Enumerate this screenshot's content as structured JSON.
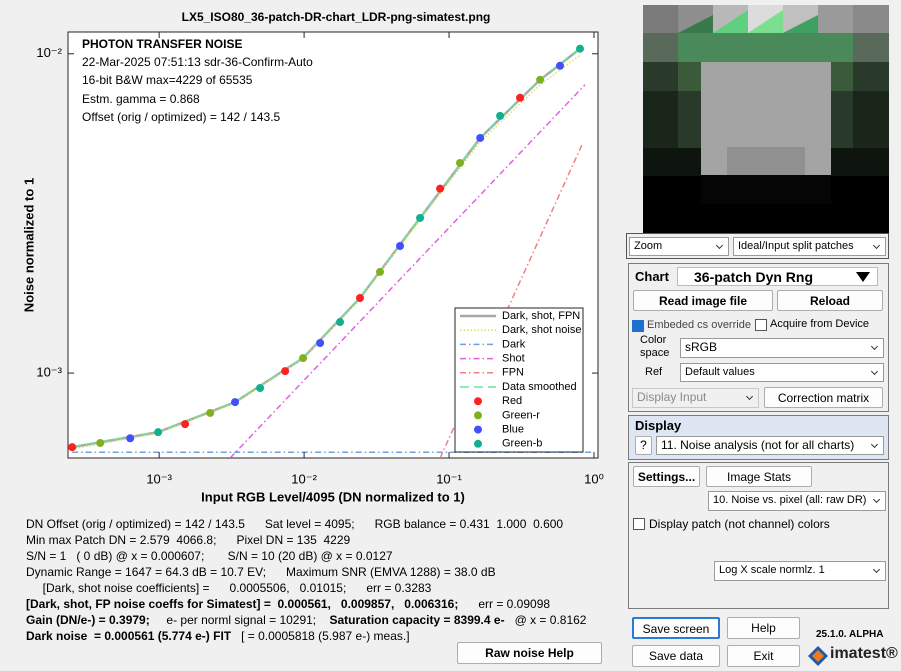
{
  "chart_data": {
    "type": "line",
    "title": "LX5_ISO80_36-patch-DR-chart_LDR-png-simatest.png",
    "annotations": [
      "PHOTON TRANSFER NOISE",
      "22-Mar-2025 07:51:13   sdr-36-Confirm-Auto",
      "16-bit B&W  max=4229 of 65535",
      "Estm. gamma = 0.868",
      "Offset (orig / optimized) = 142 / 143.5"
    ],
    "x_label": "Input RGB Level/4095  (DN normalized to 1)",
    "y_label": "Noise  normalized to 1",
    "log_x": true,
    "log_y": true,
    "grid": false,
    "legend": "lower right",
    "xlim": [
      0.000235,
      1.066
    ],
    "ylim": [
      0.000542,
      0.0117
    ],
    "xticks": [
      {
        "value": 0.001,
        "label": "10⁻³"
      },
      {
        "value": 0.01,
        "label": "10⁻²"
      },
      {
        "value": 0.1,
        "label": "10⁻¹"
      },
      {
        "value": 1,
        "label": "10⁰"
      }
    ],
    "yticks": [
      {
        "value": 0.001,
        "label": "10⁻³"
      },
      {
        "value": 0.01,
        "label": "10⁻²"
      }
    ],
    "series": [
      {
        "name": "Dark, shot, FPN",
        "color": "#a8a8a8",
        "style": "solid",
        "x": [
          0.000251,
          0.000984,
          0.00334,
          0.00984,
          0.0243,
          0.0631,
          0.164,
          0.425,
          0.801
        ],
        "values": [
          0.000586,
          0.000653,
          0.000811,
          0.001114,
          0.001718,
          0.00306,
          0.00545,
          0.00829,
          0.01037
        ]
      },
      {
        "name": "Dark, shot noise",
        "color": "#dede70",
        "style": "dotted",
        "x": [
          0.000251,
          0.000984,
          0.00334,
          0.00984,
          0.0243,
          0.0631,
          0.164,
          0.425,
          0.801
        ],
        "values": [
          0.000578,
          0.000648,
          0.000805,
          0.00111,
          0.00171,
          0.00302,
          0.0053,
          0.008,
          0.0099
        ]
      },
      {
        "name": "Dark",
        "color": "#6fa0e0",
        "style": "dashdot",
        "x": [
          0.000251,
          1
        ],
        "values": [
          0.000565,
          0.000565
        ]
      },
      {
        "name": "Shot",
        "color": "#e060e0",
        "style": "dashdot",
        "x": [
          0.00309,
          0.867
        ],
        "values": [
          0.000542,
          0.008
        ]
      },
      {
        "name": "FPN",
        "color": "#f08080",
        "style": "dashdot",
        "x": [
          0.0867,
          0.827
        ],
        "values": [
          0.000542,
          0.00519
        ]
      },
      {
        "name": "Data smoothed",
        "color": "#70e0a0",
        "style": "dashed",
        "x": [
          0.000251,
          0.000984,
          0.00334,
          0.00984,
          0.0243,
          0.0631,
          0.164,
          0.425,
          0.801
        ],
        "values": [
          0.000588,
          0.000655,
          0.000813,
          0.001116,
          0.00172,
          0.00307,
          0.00547,
          0.00832,
          0.0104
        ]
      },
      {
        "name": "Red",
        "color": "#ff2020",
        "style": "points",
        "x": [
          0.000251,
          0.00151,
          0.0074,
          0.0243,
          0.0867,
          0.309
        ],
        "values": [
          0.000586,
          0.000692,
          0.001014,
          0.001718,
          0.00378,
          0.00728
        ]
      },
      {
        "name": "Green-r",
        "color": "#80b020",
        "style": "points",
        "x": [
          0.000392,
          0.00225,
          0.00984,
          0.0334,
          0.119,
          0.425
        ],
        "values": [
          0.000604,
          0.00075,
          0.001114,
          0.002074,
          0.00455,
          0.00829
        ]
      },
      {
        "name": "Blue",
        "color": "#4050ff",
        "style": "points",
        "x": [
          0.000631,
          0.00334,
          0.0129,
          0.0459,
          0.164,
          0.583
        ],
        "values": [
          0.000625,
          0.000811,
          0.001242,
          0.0025,
          0.00545,
          0.00917
        ]
      },
      {
        "name": "Green-b",
        "color": "#10b090",
        "style": "points",
        "x": [
          0.000984,
          0.00497,
          0.0177,
          0.0631,
          0.225,
          0.801
        ],
        "values": [
          0.000653,
          0.000898,
          0.001445,
          0.00306,
          0.00639,
          0.01037
        ]
      }
    ]
  },
  "results": [
    [
      {
        "text": "DN Offset (orig / optimized) = 142 / 143.5      Sat level = 4095;      RGB balance = 0.431  1.000  0.600",
        "bold": false
      }
    ],
    [
      {
        "text": "Min max Patch DN = 2.579  4066.8;      Pixel DN = 135  4229",
        "bold": false
      }
    ],
    [
      {
        "text": "S/N = 1   ( 0 dB) @ x = 0.000607;       S/N = 10 (20 dB) @ x = 0.0127",
        "bold": false
      }
    ],
    [
      {
        "text": "Dynamic Range = 1647 = 64.3 dB = 10.7 EV;      Maximum SNR (EMVA 1288) = 38.0 dB",
        "bold": false
      }
    ],
    [
      {
        "text": "     [Dark, shot noise coefficients] =      0.0005506,   0.01015;      err = 0.3283",
        "bold": false
      }
    ],
    [
      {
        "text": "[Dark, shot, FP noise coeffs for Simatest] =  0.000561,   0.009857,   0.006316;",
        "bold": true
      },
      {
        "text": "      err = 0.09098",
        "bold": false
      }
    ],
    [
      {
        "text": "Gain (DN/e-) = 0.3979;",
        "bold": true
      },
      {
        "text": "     e- per norml signal = 10291;    ",
        "bold": false
      },
      {
        "text": "Saturation capacity = 8399.4 e-",
        "bold": true
      },
      {
        "text": "   @ x = 0.8162",
        "bold": false
      }
    ],
    [
      {
        "text": "Dark noise  = 0.000561 (5.774 e-) FIT",
        "bold": true
      },
      {
        "text": "   [ = 0.0005818 (5.987 e-) meas.]",
        "bold": false
      }
    ]
  ],
  "raw_noise_help": "Raw noise Help",
  "panel": {
    "zoom": "Zoom",
    "split": "Ideal/Input split patches",
    "chart_label": "Chart",
    "chart_select": "36-patch Dyn Rng",
    "read": "Read image file",
    "reload": "Reload",
    "embedded": "Embeded cs override",
    "acquire": "Acquire from Device",
    "color_space_label": "Color space",
    "color_space": "sRGB",
    "ref_label": "Ref",
    "ref": "Default values",
    "display_input": "Display Input",
    "correction": "Correction matrix",
    "display_label": "Display",
    "help_q": "?",
    "display_select": "11. Noise analysis (not for all charts)",
    "settings": "Settings...",
    "image_stats": "Image Stats",
    "plot_select": "10. Noise vs. pixel (all: raw DR)",
    "patch_colors": "Display patch (not channel) colors",
    "scale_select": "Log X scale normlz. 1",
    "save_screen": "Save screen",
    "help": "Help",
    "save_data": "Save data",
    "exit": "Exit",
    "version": "25.1.0. ALPHA",
    "logo": "imatest®"
  }
}
